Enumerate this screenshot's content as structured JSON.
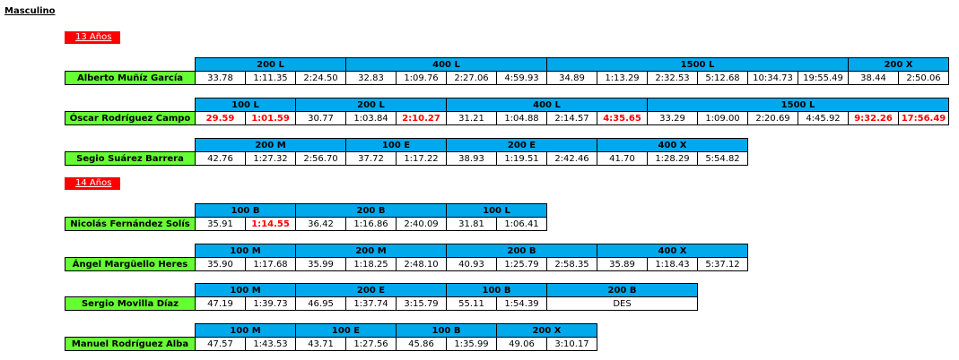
{
  "heading": "Masculino",
  "groups": [
    {
      "age": "13 Años",
      "swimmers": [
        {
          "name": "Alberto Muñíz García",
          "events": [
            {
              "label": "200 L",
              "splits": [
                {
                  "t": "33.78",
                  "rec": false
                },
                {
                  "t": "1:11.35",
                  "rec": false
                },
                {
                  "t": "2:24.50",
                  "rec": false
                }
              ]
            },
            {
              "label": "400 L",
              "splits": [
                {
                  "t": "32.83",
                  "rec": false
                },
                {
                  "t": "1:09.76",
                  "rec": false
                },
                {
                  "t": "2:27.06",
                  "rec": false
                },
                {
                  "t": "4:59.93",
                  "rec": false
                }
              ]
            },
            {
              "label": "1500 L",
              "splits": [
                {
                  "t": "34.89",
                  "rec": false
                },
                {
                  "t": "1:13.29",
                  "rec": false
                },
                {
                  "t": "2:32.53",
                  "rec": false
                },
                {
                  "t": "5:12.68",
                  "rec": false
                },
                {
                  "t": "10:34.73",
                  "rec": false
                },
                {
                  "t": "19:55.49",
                  "rec": false
                }
              ]
            },
            {
              "label": "200 X",
              "splits": [
                {
                  "t": "38.44",
                  "rec": false
                },
                {
                  "t": "2:50.06",
                  "rec": false
                }
              ]
            }
          ]
        },
        {
          "name": "Óscar Rodríguez Campo",
          "events": [
            {
              "label": "100 L",
              "splits": [
                {
                  "t": "29.59",
                  "rec": true
                },
                {
                  "t": "1:01.59",
                  "rec": true
                }
              ]
            },
            {
              "label": "200 L",
              "splits": [
                {
                  "t": "30.77",
                  "rec": false
                },
                {
                  "t": "1:03.84",
                  "rec": false
                },
                {
                  "t": "2:10.27",
                  "rec": true
                }
              ]
            },
            {
              "label": "400 L",
              "splits": [
                {
                  "t": "31.21",
                  "rec": false
                },
                {
                  "t": "1:04.88",
                  "rec": false
                },
                {
                  "t": "2:14.57",
                  "rec": false
                },
                {
                  "t": "4:35.65",
                  "rec": true
                }
              ]
            },
            {
              "label": "1500 L",
              "splits": [
                {
                  "t": "33.29",
                  "rec": false
                },
                {
                  "t": "1:09.00",
                  "rec": false
                },
                {
                  "t": "2:20.69",
                  "rec": false
                },
                {
                  "t": "4:45.92",
                  "rec": false
                },
                {
                  "t": "9:32.26",
                  "rec": true
                },
                {
                  "t": "17:56.49",
                  "rec": true
                }
              ]
            }
          ]
        },
        {
          "name": "Segio Suárez Barrera",
          "events": [
            {
              "label": "200 M",
              "splits": [
                {
                  "t": "42.76",
                  "rec": false
                },
                {
                  "t": "1:27.32",
                  "rec": false
                },
                {
                  "t": "2:56.70",
                  "rec": false
                }
              ]
            },
            {
              "label": "100 E",
              "splits": [
                {
                  "t": "37.72",
                  "rec": false
                },
                {
                  "t": "1:17.22",
                  "rec": false
                }
              ]
            },
            {
              "label": "200 E",
              "splits": [
                {
                  "t": "38.93",
                  "rec": false
                },
                {
                  "t": "1:19.51",
                  "rec": false
                },
                {
                  "t": "2:42.46",
                  "rec": false
                }
              ]
            },
            {
              "label": "400 X",
              "splits": [
                {
                  "t": "41.70",
                  "rec": false
                },
                {
                  "t": "1:28.29",
                  "rec": false
                },
                {
                  "t": "5:54.82",
                  "rec": false
                }
              ]
            }
          ]
        }
      ]
    },
    {
      "age": "14 Años",
      "swimmers": [
        {
          "name": "Nicolás Fernández Solís",
          "events": [
            {
              "label": "100 B",
              "splits": [
                {
                  "t": "35.91",
                  "rec": false
                },
                {
                  "t": "1:14.55",
                  "rec": true
                }
              ]
            },
            {
              "label": "200 B",
              "splits": [
                {
                  "t": "36.42",
                  "rec": false
                },
                {
                  "t": "1:16.86",
                  "rec": false
                },
                {
                  "t": "2:40.09",
                  "rec": false
                }
              ]
            },
            {
              "label": "100 L",
              "splits": [
                {
                  "t": "31.81",
                  "rec": false
                },
                {
                  "t": "1:06.41",
                  "rec": false
                }
              ]
            }
          ]
        },
        {
          "name": "Ángel Margüello Heres",
          "events": [
            {
              "label": "100 M",
              "splits": [
                {
                  "t": "35.90",
                  "rec": false
                },
                {
                  "t": "1:17.68",
                  "rec": false
                }
              ]
            },
            {
              "label": "200 M",
              "splits": [
                {
                  "t": "35.99",
                  "rec": false
                },
                {
                  "t": "1:18.25",
                  "rec": false
                },
                {
                  "t": "2:48.10",
                  "rec": false
                }
              ]
            },
            {
              "label": "200 B",
              "splits": [
                {
                  "t": "40.93",
                  "rec": false
                },
                {
                  "t": "1:25.79",
                  "rec": false
                },
                {
                  "t": "2:58.35",
                  "rec": false
                }
              ]
            },
            {
              "label": "400 X",
              "splits": [
                {
                  "t": "35.89",
                  "rec": false
                },
                {
                  "t": "1:18.43",
                  "rec": false
                },
                {
                  "t": "5:37.12",
                  "rec": false
                }
              ]
            }
          ]
        },
        {
          "name": "Sergio Movilla Díaz",
          "events": [
            {
              "label": "100 M",
              "splits": [
                {
                  "t": "47.19",
                  "rec": false
                },
                {
                  "t": "1:39.73",
                  "rec": false
                }
              ]
            },
            {
              "label": "200 E",
              "splits": [
                {
                  "t": "46.95",
                  "rec": false
                },
                {
                  "t": "1:37.74",
                  "rec": false
                },
                {
                  "t": "3:15.79",
                  "rec": false
                }
              ]
            },
            {
              "label": "100 B",
              "splits": [
                {
                  "t": "55.11",
                  "rec": false
                },
                {
                  "t": "1:54.39",
                  "rec": false
                }
              ]
            },
            {
              "label": "200 B",
              "splits": [
                {
                  "t": "DES",
                  "rec": false
                }
              ]
            }
          ]
        },
        {
          "name": "Manuel Rodríguez Alba",
          "events": [
            {
              "label": "100 M",
              "splits": [
                {
                  "t": "47.57",
                  "rec": false
                },
                {
                  "t": "1:43.53",
                  "rec": false
                }
              ]
            },
            {
              "label": "100 E",
              "splits": [
                {
                  "t": "43.71",
                  "rec": false
                },
                {
                  "t": "1:27.56",
                  "rec": false
                }
              ]
            },
            {
              "label": "100 B",
              "splits": [
                {
                  "t": "45.86",
                  "rec": false
                },
                {
                  "t": "1:35.99",
                  "rec": false
                }
              ]
            },
            {
              "label": "200 X",
              "splits": [
                {
                  "t": "49.06",
                  "rec": false
                },
                {
                  "t": "3:10.17",
                  "rec": false
                }
              ]
            }
          ]
        }
      ]
    }
  ]
}
